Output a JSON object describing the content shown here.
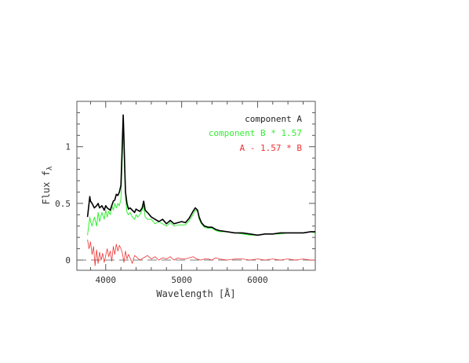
{
  "chart_data": {
    "type": "line",
    "title": "",
    "xlabel": "Wavelength [Å]",
    "ylabel_main": "Flux f",
    "ylabel_sub": "λ",
    "xlim": [
      3620,
      6760
    ],
    "ylim": [
      -0.09,
      1.4
    ],
    "xticks": [
      {
        "v": 4000,
        "label": "4000"
      },
      {
        "v": 5000,
        "label": "5000"
      },
      {
        "v": 6000,
        "label": "6000"
      }
    ],
    "yticks": [
      {
        "v": 0,
        "label": "0"
      },
      {
        "v": 0.5,
        "label": "0.5"
      },
      {
        "v": 1,
        "label": "1"
      }
    ],
    "zero_line": true,
    "legend_position": "top-right",
    "series": [
      {
        "name": "component A",
        "color": "#000000",
        "width": 1.6,
        "x": [
          3760,
          3790,
          3800,
          3820,
          3850,
          3880,
          3900,
          3920,
          3950,
          3980,
          4000,
          4020,
          4040,
          4060,
          4080,
          4100,
          4120,
          4140,
          4160,
          4180,
          4200,
          4215,
          4230,
          4240,
          4250,
          4260,
          4280,
          4300,
          4320,
          4350,
          4380,
          4400,
          4420,
          4450,
          4480,
          4500,
          4520,
          4550,
          4600,
          4650,
          4700,
          4750,
          4800,
          4850,
          4900,
          4950,
          5000,
          5050,
          5100,
          5150,
          5180,
          5210,
          5230,
          5260,
          5300,
          5350,
          5400,
          5450,
          5500,
          5600,
          5700,
          5800,
          5900,
          6000,
          6100,
          6200,
          6300,
          6400,
          6500,
          6600,
          6700,
          6760
        ],
        "y": [
          0.38,
          0.56,
          0.52,
          0.5,
          0.46,
          0.48,
          0.5,
          0.46,
          0.48,
          0.44,
          0.48,
          0.46,
          0.45,
          0.44,
          0.48,
          0.52,
          0.53,
          0.58,
          0.57,
          0.6,
          0.66,
          0.95,
          1.28,
          1.08,
          0.82,
          0.6,
          0.5,
          0.45,
          0.46,
          0.44,
          0.42,
          0.45,
          0.44,
          0.43,
          0.46,
          0.52,
          0.44,
          0.42,
          0.38,
          0.36,
          0.34,
          0.36,
          0.32,
          0.35,
          0.32,
          0.33,
          0.34,
          0.33,
          0.37,
          0.43,
          0.46,
          0.44,
          0.38,
          0.33,
          0.3,
          0.29,
          0.29,
          0.27,
          0.26,
          0.25,
          0.24,
          0.24,
          0.23,
          0.22,
          0.23,
          0.23,
          0.24,
          0.24,
          0.24,
          0.24,
          0.25,
          0.25
        ]
      },
      {
        "name": "component B * 1.57",
        "color": "#33ee33",
        "width": 1.0,
        "x": [
          3760,
          3790,
          3800,
          3820,
          3850,
          3880,
          3900,
          3920,
          3950,
          3980,
          4000,
          4020,
          4040,
          4060,
          4080,
          4100,
          4120,
          4140,
          4160,
          4180,
          4200,
          4215,
          4230,
          4240,
          4250,
          4260,
          4280,
          4300,
          4320,
          4350,
          4380,
          4400,
          4420,
          4450,
          4480,
          4500,
          4520,
          4550,
          4600,
          4650,
          4700,
          4750,
          4800,
          4850,
          4900,
          4950,
          5000,
          5050,
          5100,
          5150,
          5180,
          5210,
          5230,
          5260,
          5300,
          5350,
          5400,
          5450,
          5500,
          5600,
          5700,
          5800,
          5900,
          6000,
          6100,
          6200,
          6300,
          6400,
          6500,
          6600,
          6700,
          6760
        ],
        "y": [
          0.22,
          0.38,
          0.34,
          0.3,
          0.38,
          0.3,
          0.42,
          0.34,
          0.42,
          0.36,
          0.44,
          0.38,
          0.43,
          0.4,
          0.48,
          0.44,
          0.5,
          0.46,
          0.5,
          0.48,
          0.54,
          0.82,
          1.2,
          1.0,
          0.78,
          0.55,
          0.42,
          0.4,
          0.42,
          0.38,
          0.36,
          0.4,
          0.38,
          0.4,
          0.44,
          0.48,
          0.38,
          0.36,
          0.36,
          0.32,
          0.34,
          0.32,
          0.3,
          0.33,
          0.3,
          0.31,
          0.31,
          0.31,
          0.35,
          0.4,
          0.44,
          0.43,
          0.36,
          0.32,
          0.29,
          0.28,
          0.28,
          0.26,
          0.25,
          0.25,
          0.24,
          0.23,
          0.22,
          0.22,
          0.23,
          0.23,
          0.23,
          0.24,
          0.24,
          0.24,
          0.25,
          0.24
        ]
      },
      {
        "name": "A - 1.57 * B",
        "color": "#ee3333",
        "width": 0.8,
        "x": [
          3760,
          3780,
          3800,
          3820,
          3840,
          3860,
          3880,
          3900,
          3920,
          3940,
          3960,
          3980,
          4000,
          4020,
          4040,
          4060,
          4080,
          4100,
          4120,
          4140,
          4160,
          4180,
          4200,
          4220,
          4240,
          4260,
          4280,
          4300,
          4320,
          4350,
          4380,
          4400,
          4450,
          4500,
          4550,
          4600,
          4650,
          4700,
          4750,
          4800,
          4850,
          4900,
          4950,
          5000,
          5050,
          5100,
          5150,
          5200,
          5250,
          5300,
          5350,
          5400,
          5450,
          5500,
          5600,
          5700,
          5800,
          5900,
          6000,
          6100,
          6200,
          6300,
          6400,
          6500,
          6600,
          6700,
          6760
        ],
        "y": [
          0.18,
          0.1,
          0.16,
          0.05,
          0.12,
          -0.05,
          0.09,
          -0.03,
          0.07,
          0.0,
          0.06,
          -0.02,
          0.04,
          0.1,
          0.03,
          0.08,
          -0.01,
          0.12,
          0.05,
          0.14,
          0.08,
          0.13,
          0.1,
          0.06,
          -0.02,
          0.08,
          0.01,
          0.05,
          0.02,
          -0.03,
          0.04,
          0.03,
          0.0,
          0.02,
          0.04,
          0.01,
          0.03,
          0.0,
          0.02,
          0.01,
          0.03,
          0.0,
          0.02,
          0.01,
          0.01,
          0.02,
          0.03,
          0.01,
          0.0,
          0.01,
          0.01,
          0.0,
          0.02,
          0.01,
          0.0,
          0.01,
          0.01,
          0.0,
          0.01,
          0.0,
          0.01,
          0.0,
          0.01,
          0.0,
          0.01,
          0.0,
          0.0
        ]
      }
    ]
  }
}
